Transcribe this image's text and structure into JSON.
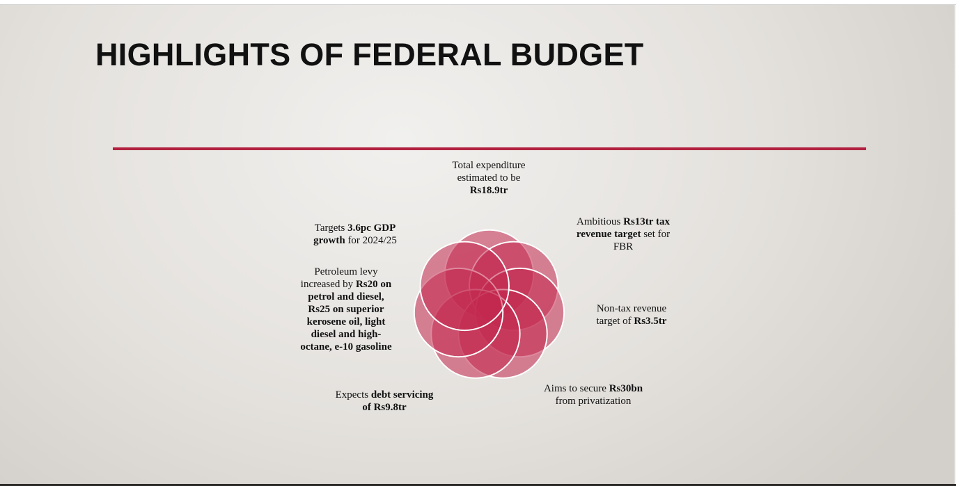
{
  "slide": {
    "title": "HIGHLIGHTS OF FEDERAL BUDGET",
    "accent_color": "#b2213f",
    "petal_color": "#c2284f"
  },
  "items": [
    {
      "name": "total-expenditure-text",
      "runs": [
        {
          "text": "Total expenditure estimated to be "
        },
        {
          "text": "Rs18.9tr",
          "bold": true
        }
      ]
    },
    {
      "name": "tax-revenue-text",
      "runs": [
        {
          "text": "Ambitious "
        },
        {
          "text": "Rs13tr tax revenue target",
          "bold": true
        },
        {
          "text": " set for FBR"
        }
      ]
    },
    {
      "name": "non-tax-revenue-text",
      "runs": [
        {
          "text": "Non-tax revenue target of "
        },
        {
          "text": "Rs3.5tr",
          "bold": true
        }
      ]
    },
    {
      "name": "privatization-text",
      "runs": [
        {
          "text": "Aims to secure "
        },
        {
          "text": "Rs30bn",
          "bold": true
        },
        {
          "text": " from privatization"
        }
      ]
    },
    {
      "name": "debt-servicing-text",
      "runs": [
        {
          "text": "Expects "
        },
        {
          "text": "debt servicing of Rs9.8tr",
          "bold": true
        }
      ]
    },
    {
      "name": "petroleum-levy-text",
      "runs": [
        {
          "text": "Petroleum levy increased by "
        },
        {
          "text": "Rs20 on petrol and diesel,",
          "bold": true
        },
        {
          "text": " "
        },
        {
          "text": "Rs25 on superior kerosene oil, light diesel and high-octane, e-10 gasoline",
          "bold": true
        }
      ]
    },
    {
      "name": "gdp-growth-text",
      "runs": [
        {
          "text": "Targets "
        },
        {
          "text": "3.6pc GDP growth",
          "bold": true
        },
        {
          "text": " for 2024/25"
        }
      ]
    }
  ]
}
